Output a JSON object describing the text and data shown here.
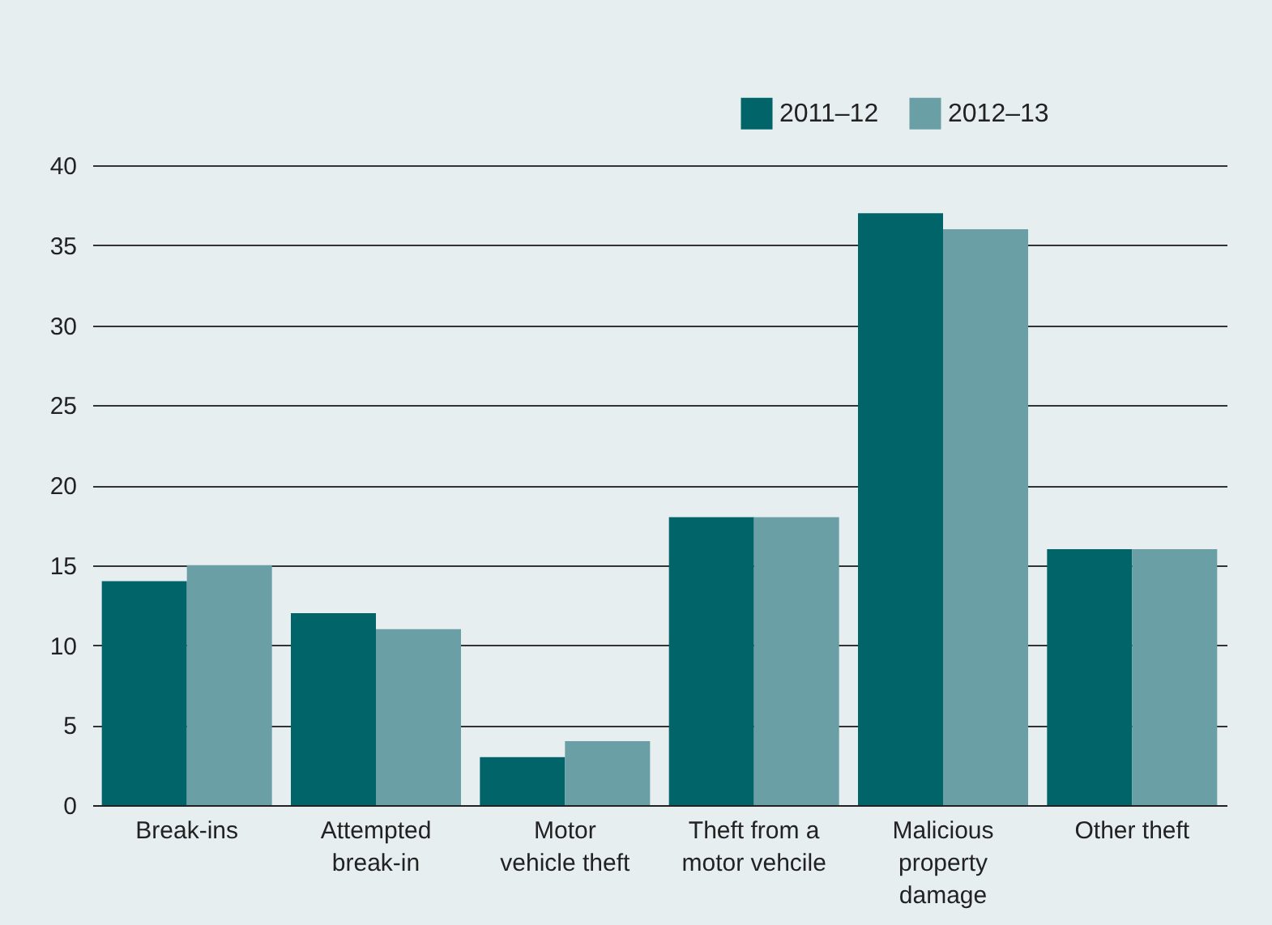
{
  "chart_data": {
    "type": "bar",
    "categories": [
      "Break-ins",
      "Attempted\nbreak-in",
      "Motor\nvehicle theft",
      "Theft from a\nmotor vehcile",
      "Malicious\nproperty\ndamage",
      "Other theft"
    ],
    "series": [
      {
        "name": "2011–12",
        "color": "#006468",
        "values": [
          14,
          12,
          3,
          18,
          37,
          16
        ]
      },
      {
        "name": "2012–13",
        "color": "#6a9fa5",
        "values": [
          15,
          11,
          4,
          18,
          36,
          16
        ]
      }
    ],
    "ylim": [
      0,
      40
    ],
    "yticks": [
      0,
      5,
      10,
      15,
      20,
      25,
      30,
      35,
      40
    ],
    "grid": "y",
    "legend": "top right"
  }
}
